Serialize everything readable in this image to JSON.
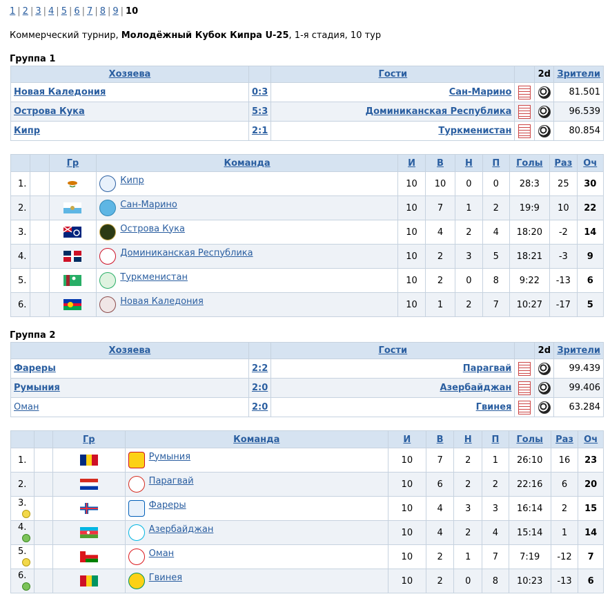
{
  "pager": {
    "pages": [
      "1",
      "2",
      "3",
      "4",
      "5",
      "6",
      "7",
      "8",
      "9"
    ],
    "current": "10"
  },
  "tournament": {
    "prefix": "Коммерческий турнир, ",
    "name": "Молодёжный Кубок Кипра U-25",
    "suffix": ", 1-я стадия, 10 тур"
  },
  "headers": {
    "home": "Хозяева",
    "away": "Гости",
    "twod": "2d",
    "att": "Зрители",
    "gr": "Гр",
    "team": "Команда",
    "played": "И",
    "won": "В",
    "draw": "Н",
    "lost": "П",
    "goals": "Голы",
    "diff": "Раз",
    "pts": "Оч"
  },
  "group1": {
    "title": "Группа 1",
    "matches": [
      {
        "home": "Новая Каледония",
        "score": "0:3",
        "away": "Сан-Марино",
        "att": "81.501"
      },
      {
        "home": "Острова Кука",
        "score": "5:3",
        "away": "Доминиканская Республика",
        "att": "96.539"
      },
      {
        "home": "Кипр",
        "score": "2:1",
        "away": "Туркменистан",
        "att": "80.854"
      }
    ],
    "standings": [
      {
        "pos": "1.",
        "team": "Кипр",
        "p": "10",
        "w": "10",
        "d": "0",
        "l": "0",
        "goals": "28:3",
        "diff": "25",
        "pts": "30"
      },
      {
        "pos": "2.",
        "team": "Сан-Марино",
        "p": "10",
        "w": "7",
        "d": "1",
        "l": "2",
        "goals": "19:9",
        "diff": "10",
        "pts": "22"
      },
      {
        "pos": "3.",
        "team": "Острова Кука",
        "p": "10",
        "w": "4",
        "d": "2",
        "l": "4",
        "goals": "18:20",
        "diff": "-2",
        "pts": "14"
      },
      {
        "pos": "4.",
        "team": "Доминиканская Республика",
        "p": "10",
        "w": "2",
        "d": "3",
        "l": "5",
        "goals": "18:21",
        "diff": "-3",
        "pts": "9"
      },
      {
        "pos": "5.",
        "team": "Туркменистан",
        "p": "10",
        "w": "2",
        "d": "0",
        "l": "8",
        "goals": "9:22",
        "diff": "-13",
        "pts": "6"
      },
      {
        "pos": "6.",
        "team": "Новая Каледония",
        "p": "10",
        "w": "1",
        "d": "2",
        "l": "7",
        "goals": "10:27",
        "diff": "-17",
        "pts": "5"
      }
    ]
  },
  "group2": {
    "title": "Группа 2",
    "matches": [
      {
        "home": "Фареры",
        "score": "2:2",
        "away": "Парагвай",
        "att": "99.439"
      },
      {
        "home": "Румыния",
        "score": "2:0",
        "away": "Азербайджан",
        "att": "99.406"
      },
      {
        "home": "Оман",
        "score": "2:0",
        "away": "Гвинея",
        "att": "63.284"
      }
    ],
    "standings": [
      {
        "pos": "1.",
        "team": "Румыния",
        "p": "10",
        "w": "7",
        "d": "2",
        "l": "1",
        "goals": "26:10",
        "diff": "16",
        "pts": "23"
      },
      {
        "pos": "2.",
        "team": "Парагвай",
        "p": "10",
        "w": "6",
        "d": "2",
        "l": "2",
        "goals": "22:16",
        "diff": "6",
        "pts": "20"
      },
      {
        "pos": "3.",
        "team": "Фареры",
        "p": "10",
        "w": "4",
        "d": "3",
        "l": "3",
        "goals": "16:14",
        "diff": "2",
        "pts": "15"
      },
      {
        "pos": "4.",
        "team": "Азербайджан",
        "p": "10",
        "w": "4",
        "d": "2",
        "l": "4",
        "goals": "15:14",
        "diff": "1",
        "pts": "14"
      },
      {
        "pos": "5.",
        "team": "Оман",
        "p": "10",
        "w": "2",
        "d": "1",
        "l": "7",
        "goals": "7:19",
        "diff": "-12",
        "pts": "7"
      },
      {
        "pos": "6.",
        "team": "Гвинея",
        "p": "10",
        "w": "2",
        "d": "0",
        "l": "8",
        "goals": "10:23",
        "diff": "-13",
        "pts": "6"
      }
    ]
  },
  "colors": {
    "link": "#2a5ea0",
    "header_bg": "#d6e3f1",
    "alt_row": "#eef2f7",
    "border": "#c6d2df"
  }
}
